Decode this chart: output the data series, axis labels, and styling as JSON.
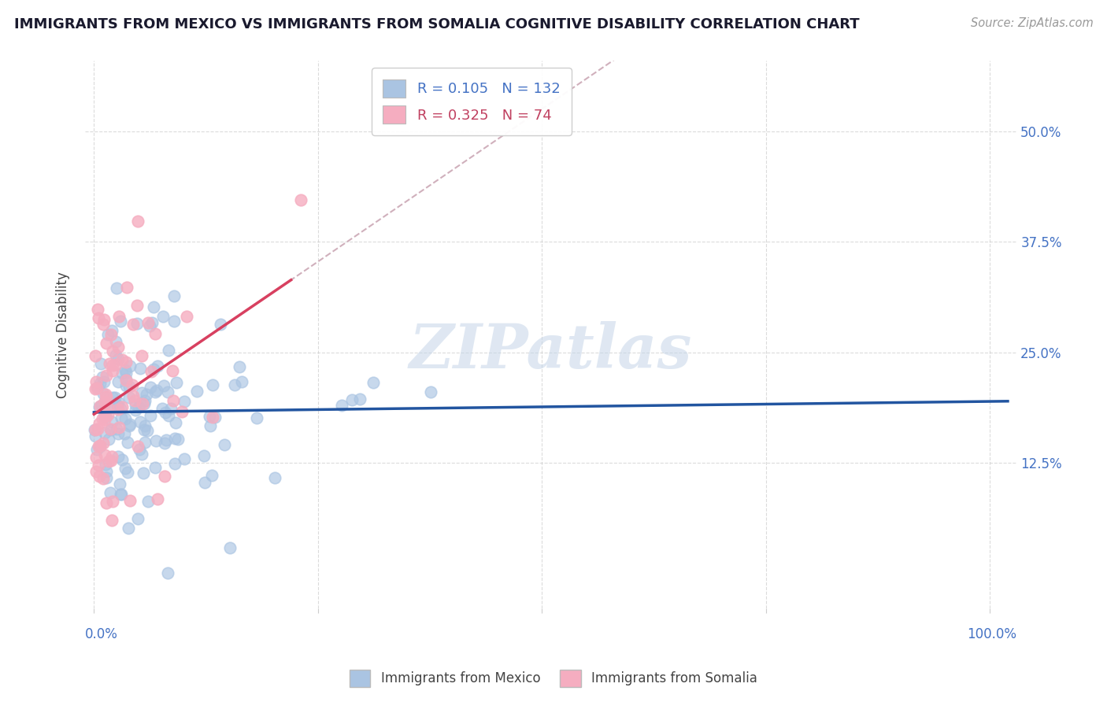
{
  "title": "IMMIGRANTS FROM MEXICO VS IMMIGRANTS FROM SOMALIA COGNITIVE DISABILITY CORRELATION CHART",
  "source": "Source: ZipAtlas.com",
  "ylabel": "Cognitive Disability",
  "yticks": [
    0.125,
    0.25,
    0.375,
    0.5
  ],
  "ytick_labels": [
    "12.5%",
    "25.0%",
    "37.5%",
    "50.0%"
  ],
  "mexico_color": "#aac4e2",
  "somalia_color": "#f5adc0",
  "mexico_R": 0.105,
  "mexico_N": 132,
  "somalia_R": 0.325,
  "somalia_N": 74,
  "trend_blue": "#2255a0",
  "trend_pink": "#d84060",
  "trend_dashed_color": "#d0b0bc",
  "watermark": "ZIPatlas",
  "watermark_color": "#c5d5e8",
  "legend_blue_label": "Immigrants from Mexico",
  "legend_pink_label": "Immigrants from Somalia",
  "background": "#ffffff",
  "grid_color": "#cccccc",
  "title_color": "#1a1a2e",
  "axis_color": "#4472c4",
  "label_color_blue": "#4472c4",
  "label_color_pink": "#c04060"
}
